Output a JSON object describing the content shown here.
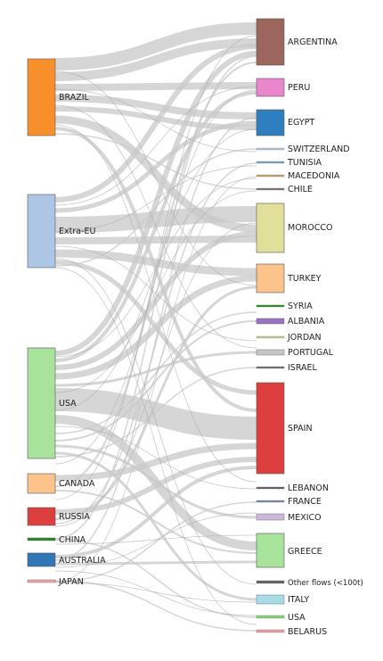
{
  "sources": [
    {
      "key": "brazil",
      "label": "BRAZIL",
      "color": "#f7902b"
    },
    {
      "key": "extraeu",
      "label": "Extra-EU",
      "color": "#adc6e6"
    },
    {
      "key": "usa",
      "label": "USA",
      "color": "#a7e39a"
    },
    {
      "key": "canada",
      "label": "CANADA",
      "color": "#fcc48a"
    },
    {
      "key": "russia",
      "label": "RUSSIA",
      "color": "#dd3f3f"
    },
    {
      "key": "china",
      "label": "CHINA",
      "color": "#2f8a2f"
    },
    {
      "key": "australia",
      "label": "AUSTRALIA",
      "color": "#2f78b5"
    },
    {
      "key": "japan",
      "label": "JAPAN",
      "color": "#f4a6a0"
    }
  ],
  "targets": [
    {
      "key": "argentina",
      "label": "ARGENTINA",
      "color": "#9c665c"
    },
    {
      "key": "peru",
      "label": "PERU",
      "color": "#ea86cc"
    },
    {
      "key": "egypt",
      "label": "EGYPT",
      "color": "#2f7fc0"
    },
    {
      "key": "switzerland",
      "label": "SWITZERLAND",
      "color": "#b0c4de"
    },
    {
      "key": "tunisia",
      "label": "TUNISIA",
      "color": "#7aa4c4"
    },
    {
      "key": "macedonia",
      "label": "MACEDONIA",
      "color": "#c8a070"
    },
    {
      "key": "chile",
      "label": "CHILE",
      "color": "#8a6d6d"
    },
    {
      "key": "morocco",
      "label": "MOROCCO",
      "color": "#e0e09a"
    },
    {
      "key": "turkey",
      "label": "TURKEY",
      "color": "#fcc48a"
    },
    {
      "key": "syria",
      "label": "SYRIA",
      "color": "#2f8a2f"
    },
    {
      "key": "albania",
      "label": "ALBANIA",
      "color": "#9a74c2"
    },
    {
      "key": "jordan",
      "label": "JORDAN",
      "color": "#c9c98a"
    },
    {
      "key": "portugal",
      "label": "PORTUGAL",
      "color": "#c6c6c6"
    },
    {
      "key": "israel",
      "label": "ISRAEL",
      "color": "#707090"
    },
    {
      "key": "spain",
      "label": "SPAIN",
      "color": "#dd3f3f"
    },
    {
      "key": "lebanon",
      "label": "LEBANON",
      "color": "#6d5f7a"
    },
    {
      "key": "france",
      "label": "FRANCE",
      "color": "#7a90a8"
    },
    {
      "key": "mexico",
      "label": "MEXICO",
      "color": "#cdb8dc"
    },
    {
      "key": "greece",
      "label": "GREECE",
      "color": "#a7e39a"
    },
    {
      "key": "otherflows",
      "label": "Other flows (<100t)",
      "color": "#666666"
    },
    {
      "key": "italy",
      "label": "ITALY",
      "color": "#a8dce8"
    },
    {
      "key": "usa_t",
      "label": "USA",
      "color": "#8fcf7f"
    },
    {
      "key": "belarus",
      "label": "BELARUS",
      "color": "#e6a0a0"
    }
  ],
  "link_color": "#c8c8c8"
}
